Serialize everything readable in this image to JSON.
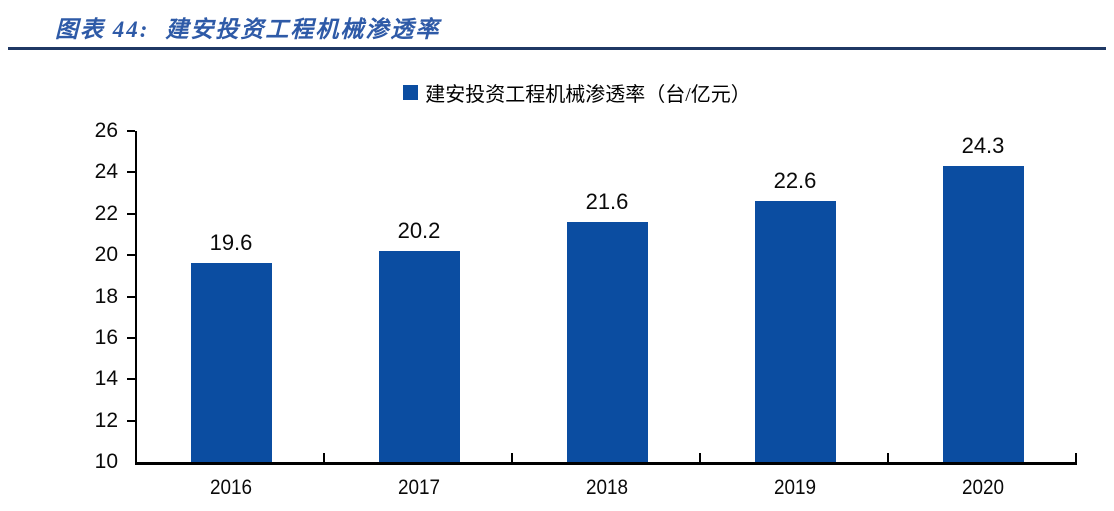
{
  "figure": {
    "label": "图表 44:",
    "title": "建安投资工程机械渗透率"
  },
  "chart_data": {
    "type": "bar",
    "title": "建安投资工程机械渗透率",
    "legend": [
      "建安投资工程机械渗透率（台/亿元）"
    ],
    "legend_position": "top-center",
    "categories": [
      "2016",
      "2017",
      "2018",
      "2019",
      "2020"
    ],
    "values": [
      19.6,
      20.2,
      21.6,
      22.6,
      24.3
    ],
    "data_labels": [
      "19.6",
      "20.2",
      "21.6",
      "22.6",
      "24.3"
    ],
    "xlabel": "",
    "ylabel": "",
    "ylim": [
      10,
      26
    ],
    "yticks": [
      10,
      12,
      14,
      16,
      18,
      20,
      22,
      24,
      26
    ],
    "grid": false,
    "bar_color": "#0B4DA1"
  },
  "colors": {
    "bar": "#0B4DA1",
    "title_text": "#2E5AA7",
    "divider": "#1F3864",
    "axis": "#000000",
    "label_text": "#0a0a0a"
  }
}
